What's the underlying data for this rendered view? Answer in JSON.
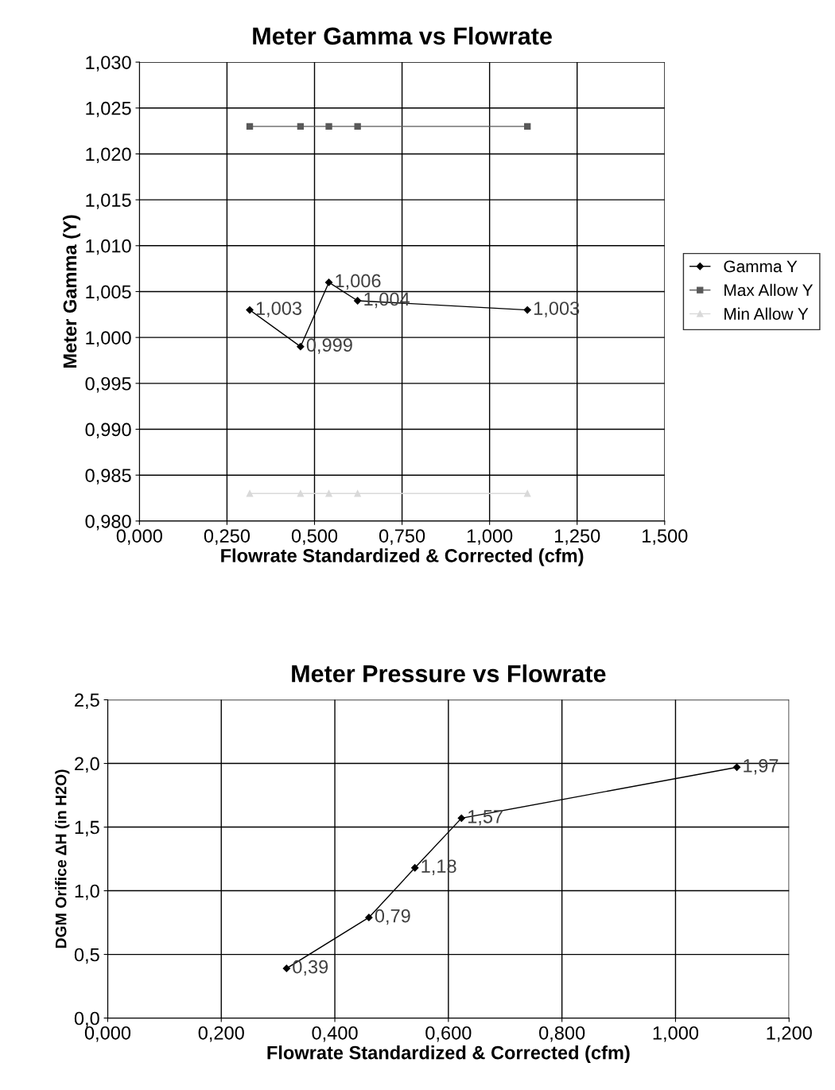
{
  "chart_data": [
    {
      "type": "line",
      "title": "Meter Gamma vs Flowrate",
      "xlabel": "Flowrate Standardized & Corrected (cfm)",
      "ylabel": "Meter Gamma (Y)",
      "x": [
        0.315,
        0.46,
        0.541,
        0.623,
        1.108
      ],
      "series": [
        {
          "name": "Gamma Y",
          "color": "#000000",
          "marker": "diamond",
          "values": [
            1.003,
            0.999,
            1.006,
            1.004,
            1.003
          ],
          "value_labels": [
            "1,003",
            "0,999",
            "1,006",
            "1,004",
            "1,003"
          ]
        },
        {
          "name": "Max Allow Y",
          "color": "#595959",
          "marker": "square",
          "values": [
            1.023,
            1.023,
            1.023,
            1.023,
            1.023
          ]
        },
        {
          "name": "Min Allow Y",
          "color": "#d9d9d9",
          "marker": "triangle",
          "values": [
            0.983,
            0.983,
            0.983,
            0.983,
            0.983
          ]
        }
      ],
      "xlim": [
        0,
        1.5
      ],
      "xticks": [
        {
          "value": 0,
          "label": "0,000"
        },
        {
          "value": 0.25,
          "label": "0,250"
        },
        {
          "value": 0.5,
          "label": "0,500"
        },
        {
          "value": 0.75,
          "label": "0,750"
        },
        {
          "value": 1.0,
          "label": "1,000"
        },
        {
          "value": 1.25,
          "label": "1,250"
        },
        {
          "value": 1.5,
          "label": "1,500"
        }
      ],
      "ylim": [
        0.98,
        1.03
      ],
      "yticks": [
        {
          "value": 0.98,
          "label": "0,980"
        },
        {
          "value": 0.985,
          "label": "0,985"
        },
        {
          "value": 0.99,
          "label": "0,990"
        },
        {
          "value": 0.995,
          "label": "0,995"
        },
        {
          "value": 1.0,
          "label": "1,000"
        },
        {
          "value": 1.005,
          "label": "1,005"
        },
        {
          "value": 1.01,
          "label": "1,010"
        },
        {
          "value": 1.015,
          "label": "1,015"
        },
        {
          "value": 1.02,
          "label": "1,020"
        },
        {
          "value": 1.025,
          "label": "1,025"
        },
        {
          "value": 1.03,
          "label": "1,030"
        }
      ],
      "grid": true,
      "legend": "right"
    },
    {
      "type": "line",
      "title": "Meter Pressure vs Flowrate",
      "xlabel": "Flowrate Standardized & Corrected (cfm)",
      "ylabel": "DGM Orifice ΔH (in H2O)",
      "x": [
        0.315,
        0.46,
        0.541,
        0.623,
        1.108
      ],
      "series": [
        {
          "color": "#000000",
          "marker": "diamond",
          "values": [
            0.39,
            0.79,
            1.18,
            1.57,
            1.97
          ],
          "value_labels": [
            "0,39",
            "0,79",
            "1,18",
            "1,57",
            "1,97"
          ]
        }
      ],
      "xlim": [
        0,
        1.2
      ],
      "xticks": [
        {
          "value": 0,
          "label": "0,000"
        },
        {
          "value": 0.2,
          "label": "0,200"
        },
        {
          "value": 0.4,
          "label": "0,400"
        },
        {
          "value": 0.6,
          "label": "0,600"
        },
        {
          "value": 0.8,
          "label": "0,800"
        },
        {
          "value": 1.0,
          "label": "1,000"
        },
        {
          "value": 1.2,
          "label": "1,200"
        }
      ],
      "ylim": [
        0,
        2.5
      ],
      "yticks": [
        {
          "value": 0,
          "label": "0,0"
        },
        {
          "value": 0.5,
          "label": "0,5"
        },
        {
          "value": 1.0,
          "label": "1,0"
        },
        {
          "value": 1.5,
          "label": "1,5"
        },
        {
          "value": 2.0,
          "label": "2,0"
        },
        {
          "value": 2.5,
          "label": "2,5"
        }
      ],
      "grid": true
    }
  ]
}
